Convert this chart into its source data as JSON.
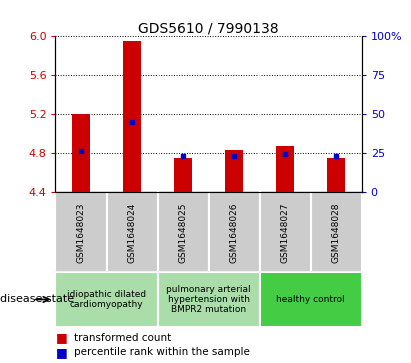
{
  "title": "GDS5610 / 7990138",
  "samples": [
    "GSM1648023",
    "GSM1648024",
    "GSM1648025",
    "GSM1648026",
    "GSM1648027",
    "GSM1648028"
  ],
  "transformed_count": [
    5.2,
    5.95,
    4.75,
    4.83,
    4.88,
    4.75
  ],
  "percentile_rank_yval": [
    4.82,
    5.12,
    4.77,
    4.77,
    4.79,
    4.77
  ],
  "ymin": 4.4,
  "ymax": 6.0,
  "yticks_left": [
    4.4,
    4.8,
    5.2,
    5.6,
    6.0
  ],
  "yticks_right": [
    0,
    25,
    50,
    75,
    100
  ],
  "bar_color": "#cc0000",
  "marker_color": "#0000cc",
  "bar_width": 0.35,
  "groups": [
    {
      "indices": [
        0,
        1
      ],
      "label": "idiopathic dilated\ncardiomyopathy",
      "color": "#aaddaa"
    },
    {
      "indices": [
        2,
        3
      ],
      "label": "pulmonary arterial\nhypertension with\nBMPR2 mutation",
      "color": "#aaddaa"
    },
    {
      "indices": [
        4,
        5
      ],
      "label": "healthy control",
      "color": "#44cc44"
    }
  ],
  "legend_bar_label": "transformed count",
  "legend_marker_label": "percentile rank within the sample",
  "disease_state_label": "disease state",
  "left_axis_color": "#cc0000",
  "right_axis_color": "#0000cc",
  "sample_bg_color": "#cccccc",
  "sample_border_color": "#ffffff",
  "grid_color": "#000000",
  "title_fontsize": 10,
  "tick_fontsize": 8,
  "sample_fontsize": 6.5,
  "group_fontsize": 6.5,
  "legend_fontsize": 7.5,
  "disease_state_fontsize": 8
}
